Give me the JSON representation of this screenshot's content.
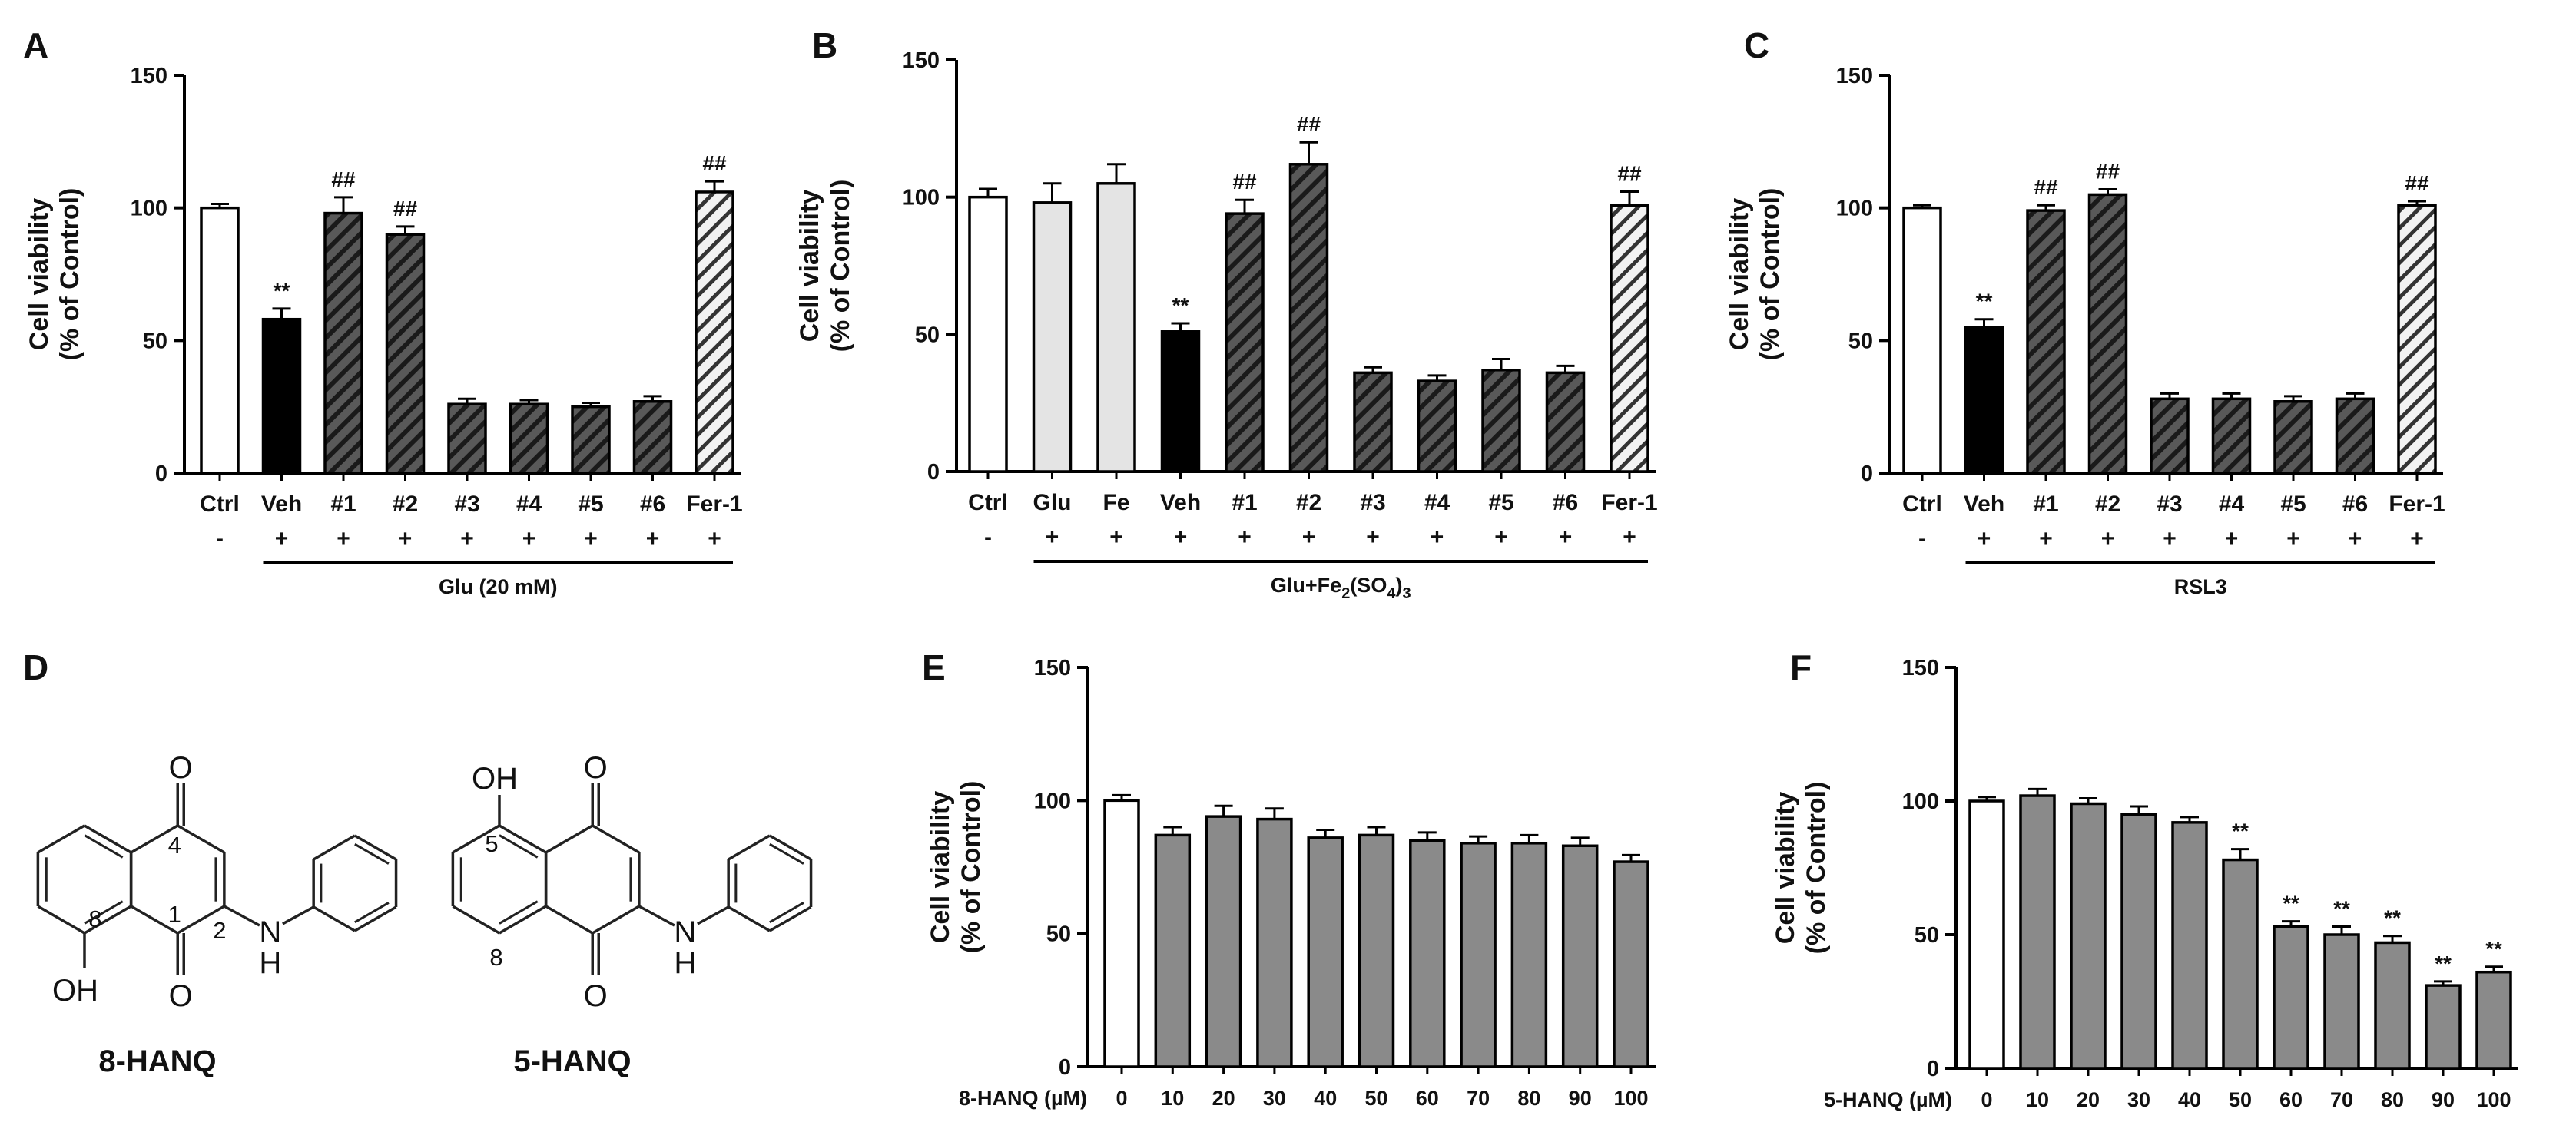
{
  "chart_data": [
    {
      "panel": "A",
      "type": "bar",
      "ylabel": [
        "Cell viability",
        "(% of Control)"
      ],
      "ylim": [
        0,
        150
      ],
      "yticks": [
        0,
        50,
        100,
        150
      ],
      "categories": [
        "Ctrl",
        "Veh",
        "#1",
        "#2",
        "#3",
        "#4",
        "#5",
        "#6",
        "Fer-1"
      ],
      "values": [
        100,
        58,
        98,
        90,
        26,
        26,
        25,
        27,
        106
      ],
      "errors": [
        1.5,
        4,
        6,
        3,
        2,
        1.5,
        1.5,
        2,
        4
      ],
      "fills": [
        "white",
        "black",
        "dark-hatch",
        "dark-hatch",
        "dark-hatch",
        "dark-hatch",
        "dark-hatch",
        "dark-hatch",
        "light-hatch"
      ],
      "significance": [
        "",
        "**",
        "##",
        "##",
        "",
        "",
        "",
        "",
        "##"
      ],
      "treatment_signs": [
        "-",
        "+",
        "+",
        "+",
        "+",
        "+",
        "+",
        "+",
        "+"
      ],
      "treatment_label": "Glu (20 mM)"
    },
    {
      "panel": "B",
      "type": "bar",
      "ylabel": [
        "Cell viability",
        "(% of Control)"
      ],
      "ylim": [
        0,
        150
      ],
      "yticks": [
        0,
        50,
        100,
        150
      ],
      "categories": [
        "Ctrl",
        "Glu",
        "Fe",
        "Veh",
        "#1",
        "#2",
        "#3",
        "#4",
        "#5",
        "#6",
        "Fer-1"
      ],
      "values": [
        100,
        98,
        105,
        51,
        94,
        112,
        36,
        33,
        37,
        36,
        97
      ],
      "errors": [
        3,
        7,
        7,
        3,
        5,
        8,
        2,
        2,
        4,
        2.5,
        5
      ],
      "fills": [
        "white",
        "light-gray",
        "light-gray",
        "black",
        "dark-hatch",
        "dark-hatch",
        "dark-hatch",
        "dark-hatch",
        "dark-hatch",
        "dark-hatch",
        "light-hatch"
      ],
      "significance": [
        "",
        "",
        "",
        "**",
        "##",
        "##",
        "",
        "",
        "",
        "",
        "##"
      ],
      "treatment_signs": [
        "-",
        "+",
        "+",
        "+",
        "+",
        "+",
        "+",
        "+",
        "+",
        "+",
        "+"
      ],
      "treatment_label": "Glu+Fe2(SO4)3"
    },
    {
      "panel": "C",
      "type": "bar",
      "ylabel": [
        "Cell viability",
        "(% of Control)"
      ],
      "ylim": [
        0,
        150
      ],
      "yticks": [
        0,
        50,
        100,
        150
      ],
      "categories": [
        "Ctrl",
        "Veh",
        "#1",
        "#2",
        "#3",
        "#4",
        "#5",
        "#6",
        "Fer-1"
      ],
      "values": [
        100,
        55,
        99,
        105,
        28,
        28,
        27,
        28,
        101
      ],
      "errors": [
        1,
        3,
        2,
        2,
        2,
        2,
        2,
        2,
        1.5
      ],
      "fills": [
        "white",
        "black",
        "dark-hatch",
        "dark-hatch",
        "dark-hatch",
        "dark-hatch",
        "dark-hatch",
        "dark-hatch",
        "light-hatch"
      ],
      "significance": [
        "",
        "**",
        "##",
        "##",
        "",
        "",
        "",
        "",
        "##"
      ],
      "treatment_signs": [
        "-",
        "+",
        "+",
        "+",
        "+",
        "+",
        "+",
        "+",
        "+"
      ],
      "treatment_label": "RSL3"
    },
    {
      "panel": "E",
      "type": "bar",
      "ylabel": [
        "Cell viability",
        "(% of Control)"
      ],
      "ylim": [
        0,
        150
      ],
      "yticks": [
        0,
        50,
        100,
        150
      ],
      "xlabel": "8-HANQ (µM)",
      "categories": [
        "0",
        "10",
        "20",
        "30",
        "40",
        "50",
        "60",
        "70",
        "80",
        "90",
        "100"
      ],
      "values": [
        100,
        87,
        94,
        93,
        86,
        87,
        85,
        84,
        84,
        83,
        77
      ],
      "errors": [
        2,
        3,
        4,
        4,
        3,
        3,
        3,
        2.5,
        3,
        3,
        2.5
      ],
      "fills": [
        "white",
        "gray",
        "gray",
        "gray",
        "gray",
        "gray",
        "gray",
        "gray",
        "gray",
        "gray",
        "gray"
      ],
      "significance": [
        "",
        "",
        "",
        "",
        "",
        "",
        "",
        "",
        "",
        "",
        ""
      ]
    },
    {
      "panel": "F",
      "type": "bar",
      "ylabel": [
        "Cell viability",
        "(% of Control)"
      ],
      "ylim": [
        0,
        150
      ],
      "yticks": [
        0,
        50,
        100,
        150
      ],
      "xlabel": "5-HANQ (µM)",
      "categories": [
        "0",
        "10",
        "20",
        "30",
        "40",
        "50",
        "60",
        "70",
        "80",
        "90",
        "100"
      ],
      "values": [
        100,
        102,
        99,
        95,
        92,
        78,
        53,
        50,
        47,
        31,
        36
      ],
      "errors": [
        1.5,
        2.5,
        2,
        3,
        2,
        4,
        2,
        3,
        2.5,
        1.5,
        2
      ],
      "fills": [
        "white",
        "gray",
        "gray",
        "gray",
        "gray",
        "gray",
        "gray",
        "gray",
        "gray",
        "gray",
        "gray"
      ],
      "significance": [
        "",
        "",
        "",
        "",
        "",
        "**",
        "**",
        "**",
        "**",
        "**",
        "**"
      ]
    }
  ],
  "structures": {
    "panel": "D",
    "compounds": [
      {
        "name": "8-HANQ",
        "oh_label": "OH",
        "nh_label": "N",
        "h_label": "H",
        "o_label": "O",
        "position_labels": [
          "4",
          "1",
          "2",
          "8"
        ]
      },
      {
        "name": "5-HANQ",
        "oh_label": "OH",
        "nh_label": "N",
        "h_label": "H",
        "o_label": "O",
        "position_labels": [
          "5",
          "8"
        ]
      }
    ]
  }
}
